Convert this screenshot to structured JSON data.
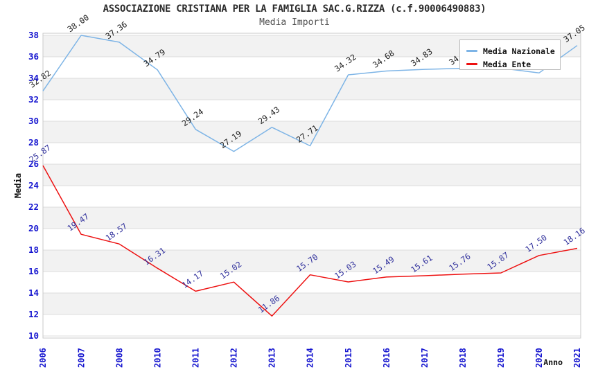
{
  "header": {
    "title": "ASSOCIAZIONE CRISTIANA PER LA FAMIGLIA SAC.G.RIZZA (c.f.90006490883)",
    "subtitle": "Media Importi"
  },
  "axes": {
    "y_label": "Media",
    "x_label": "Anno",
    "tick_color": "#1515cf"
  },
  "legend": {
    "position": "top-right",
    "items": [
      {
        "label": "Media Nazionale",
        "color": "#7db4e6"
      },
      {
        "label": "Media Ente",
        "color": "#ed1111"
      }
    ]
  },
  "chart_data": {
    "type": "line",
    "title": "ASSOCIAZIONE CRISTIANA PER LA FAMIGLIA SAC.G.RIZZA (c.f.90006490883)",
    "subtitle": "Media Importi",
    "xlabel": "Anno",
    "ylabel": "Media",
    "ylim": [
      10,
      38
    ],
    "ytick_step": 2,
    "grid": true,
    "band_fill": "#f2f2f2",
    "gridline_color": "#dcdcdc",
    "border_color": "#c9c9c9",
    "legend_position": "top-right",
    "categories": [
      "2006",
      "2007",
      "2008",
      "2010",
      "2011",
      "2012",
      "2013",
      "2014",
      "2015",
      "2016",
      "2017",
      "2018",
      "2019",
      "2020",
      "2021"
    ],
    "series": [
      {
        "name": "Media Nazionale",
        "color": "#7db4e6",
        "label_color": "#1c1c1c",
        "values": [
          32.82,
          38.0,
          37.36,
          34.79,
          29.24,
          27.19,
          29.43,
          27.71,
          34.32,
          34.68,
          34.83,
          34.93,
          34.95,
          34.5,
          37.05
        ],
        "labels_occluded_by_legend": [
          "2018",
          "2019",
          "2020"
        ]
      },
      {
        "name": "Media Ente",
        "color": "#ed1111",
        "label_color": "#30309c",
        "values": [
          25.87,
          19.47,
          18.57,
          16.31,
          14.17,
          15.02,
          11.86,
          15.7,
          15.03,
          15.49,
          15.61,
          15.76,
          15.87,
          17.5,
          18.16
        ]
      }
    ]
  }
}
